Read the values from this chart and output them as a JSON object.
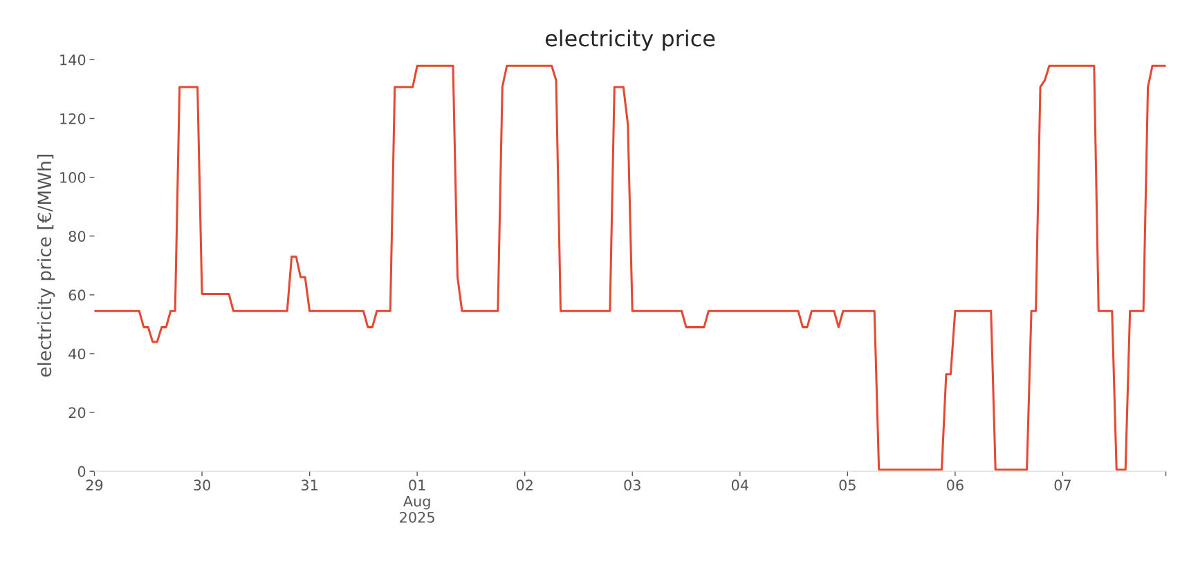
{
  "chart_data": {
    "type": "line",
    "title": "electricity price",
    "ylabel": "electricity price [€/MWh]",
    "x": [
      "2025-07-29T00:00",
      "2025-07-29T10:00",
      "2025-07-29T11:00",
      "2025-07-29T12:00",
      "2025-07-29T13:00",
      "2025-07-29T14:00",
      "2025-07-29T15:00",
      "2025-07-29T16:00",
      "2025-07-29T17:00",
      "2025-07-29T18:00",
      "2025-07-29T19:00",
      "2025-07-29T23:00",
      "2025-07-30T00:00",
      "2025-07-30T06:00",
      "2025-07-30T07:00",
      "2025-07-30T19:00",
      "2025-07-30T20:00",
      "2025-07-30T21:00",
      "2025-07-30T22:00",
      "2025-07-30T23:00",
      "2025-07-31T00:00",
      "2025-07-31T12:00",
      "2025-07-31T13:00",
      "2025-07-31T14:00",
      "2025-07-31T15:00",
      "2025-07-31T18:00",
      "2025-07-31T19:00",
      "2025-07-31T23:00",
      "2025-08-01T00:00",
      "2025-08-01T08:00",
      "2025-08-01T09:00",
      "2025-08-01T10:00",
      "2025-08-01T18:00",
      "2025-08-01T19:00",
      "2025-08-01T20:00",
      "2025-08-02T06:00",
      "2025-08-02T07:00",
      "2025-08-02T08:00",
      "2025-08-02T19:00",
      "2025-08-02T20:00",
      "2025-08-02T22:00",
      "2025-08-02T23:00",
      "2025-08-03T00:00",
      "2025-08-03T11:00",
      "2025-08-03T12:00",
      "2025-08-03T16:00",
      "2025-08-03T17:00",
      "2025-08-04T13:00",
      "2025-08-04T14:00",
      "2025-08-04T15:00",
      "2025-08-04T16:00",
      "2025-08-04T21:00",
      "2025-08-04T22:00",
      "2025-08-04T23:00",
      "2025-08-05T06:00",
      "2025-08-05T07:00",
      "2025-08-05T21:00",
      "2025-08-05T22:00",
      "2025-08-05T23:00",
      "2025-08-06T00:00",
      "2025-08-06T08:00",
      "2025-08-06T09:00",
      "2025-08-06T16:00",
      "2025-08-06T17:00",
      "2025-08-06T18:00",
      "2025-08-06T19:00",
      "2025-08-06T20:00",
      "2025-08-06T21:00",
      "2025-08-07T07:00",
      "2025-08-07T08:00",
      "2025-08-07T11:00",
      "2025-08-07T12:00",
      "2025-08-07T14:00",
      "2025-08-07T15:00",
      "2025-08-07T18:00",
      "2025-08-07T19:00",
      "2025-08-07T20:00",
      "2025-08-07T23:00"
    ],
    "series": [
      {
        "color": "#e24a33",
        "values": [
          54.5,
          54.5,
          49,
          49,
          44,
          44,
          49,
          49,
          54.5,
          54.5,
          130.7,
          130.7,
          60.3,
          60.3,
          54.5,
          54.5,
          73,
          73,
          66,
          66,
          54.5,
          54.5,
          49,
          49,
          54.5,
          54.5,
          130.7,
          130.7,
          137.9,
          137.9,
          66,
          54.5,
          54.5,
          130.7,
          137.9,
          137.9,
          133,
          54.5,
          54.5,
          130.7,
          130.7,
          118,
          54.5,
          54.5,
          49,
          49,
          54.5,
          54.5,
          49,
          49,
          54.5,
          54.5,
          49,
          54.5,
          54.5,
          0.5,
          0.5,
          33,
          33,
          54.5,
          54.5,
          0.5,
          0.5,
          54.5,
          54.5,
          130.7,
          133,
          137.9,
          137.9,
          54.5,
          54.5,
          0.5,
          0.5,
          54.5,
          54.5,
          130.7,
          137.9,
          137.9
        ]
      }
    ],
    "xlim": [
      "2025-07-29T00:00",
      "2025-08-07T23:00"
    ],
    "xticks": [
      {
        "value": "2025-07-29",
        "label": "29"
      },
      {
        "value": "2025-07-30",
        "label": "30"
      },
      {
        "value": "2025-07-31",
        "label": "31"
      },
      {
        "value": "2025-08-01",
        "label": "01\nAug\n2025"
      },
      {
        "value": "2025-08-02",
        "label": "02"
      },
      {
        "value": "2025-08-03",
        "label": "03"
      },
      {
        "value": "2025-08-04",
        "label": "04"
      },
      {
        "value": "2025-08-05",
        "label": "05"
      },
      {
        "value": "2025-08-06",
        "label": "06"
      },
      {
        "value": "2025-08-07",
        "label": "07"
      },
      {
        "value": "2025-08-07T23:00",
        "label": null
      }
    ],
    "ylim": [
      0,
      140
    ],
    "yticks": [
      0,
      20,
      40,
      60,
      80,
      100,
      120,
      140
    ],
    "grid": false,
    "legend": false
  }
}
